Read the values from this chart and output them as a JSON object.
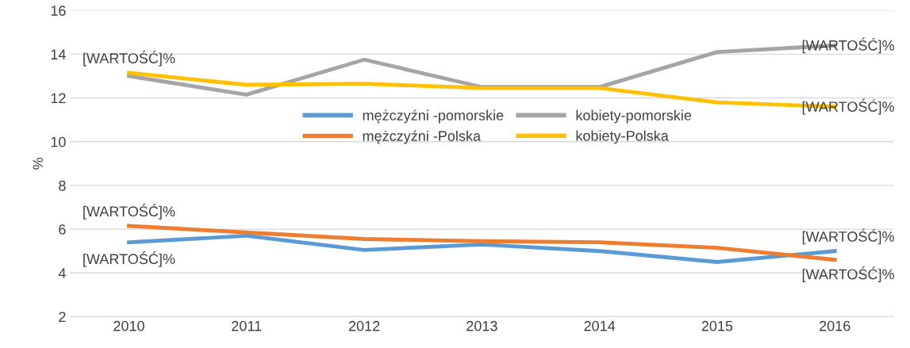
{
  "chart_data": {
    "type": "line",
    "ylabel": "%",
    "categories": [
      "2010",
      "2011",
      "2012",
      "2013",
      "2014",
      "2015",
      "2016"
    ],
    "series": [
      {
        "name": "mężczyźni -pomorskie",
        "color": "#5b9bd5",
        "values": [
          5.4,
          5.7,
          5.05,
          5.3,
          5.0,
          4.5,
          5.0
        ]
      },
      {
        "name": "mężczyźni -Polska",
        "color": "#ed7d31",
        "values": [
          6.15,
          5.85,
          5.55,
          5.45,
          5.4,
          5.15,
          4.6
        ]
      },
      {
        "name": "kobiety-pomorskie",
        "color": "#a5a5a5",
        "values": [
          13.0,
          12.15,
          13.75,
          12.5,
          12.5,
          14.1,
          14.4
        ]
      },
      {
        "name": "kobiety-Polska",
        "color": "#ffc000",
        "values": [
          13.15,
          12.6,
          12.65,
          12.45,
          12.45,
          11.8,
          11.6
        ]
      }
    ],
    "ylim": [
      2,
      16
    ],
    "yticks": [
      2,
      4,
      6,
      8,
      10,
      12,
      14,
      16
    ],
    "grid": "y",
    "legend": "center",
    "marker": "none",
    "line_style": "solid",
    "annotations": [
      {
        "text": "[WARTOŚĆ]%",
        "x": "2010",
        "y": 13.15
      },
      {
        "text": "[WARTOŚĆ]%",
        "x": "2016",
        "y": 14.4
      },
      {
        "text": "[WARTOŚĆ]%",
        "x": "2016",
        "y": 11.6
      },
      {
        "text": "[WARTOŚĆ]%",
        "x": "2010",
        "y": 6.15
      },
      {
        "text": "[WARTOŚĆ]%",
        "x": "2010",
        "y": 5.4
      },
      {
        "text": "[WARTOŚĆ]%",
        "x": "2016",
        "y": 5.0
      },
      {
        "text": "[WARTOŚĆ]%",
        "x": "2016",
        "y": 4.6
      }
    ]
  }
}
